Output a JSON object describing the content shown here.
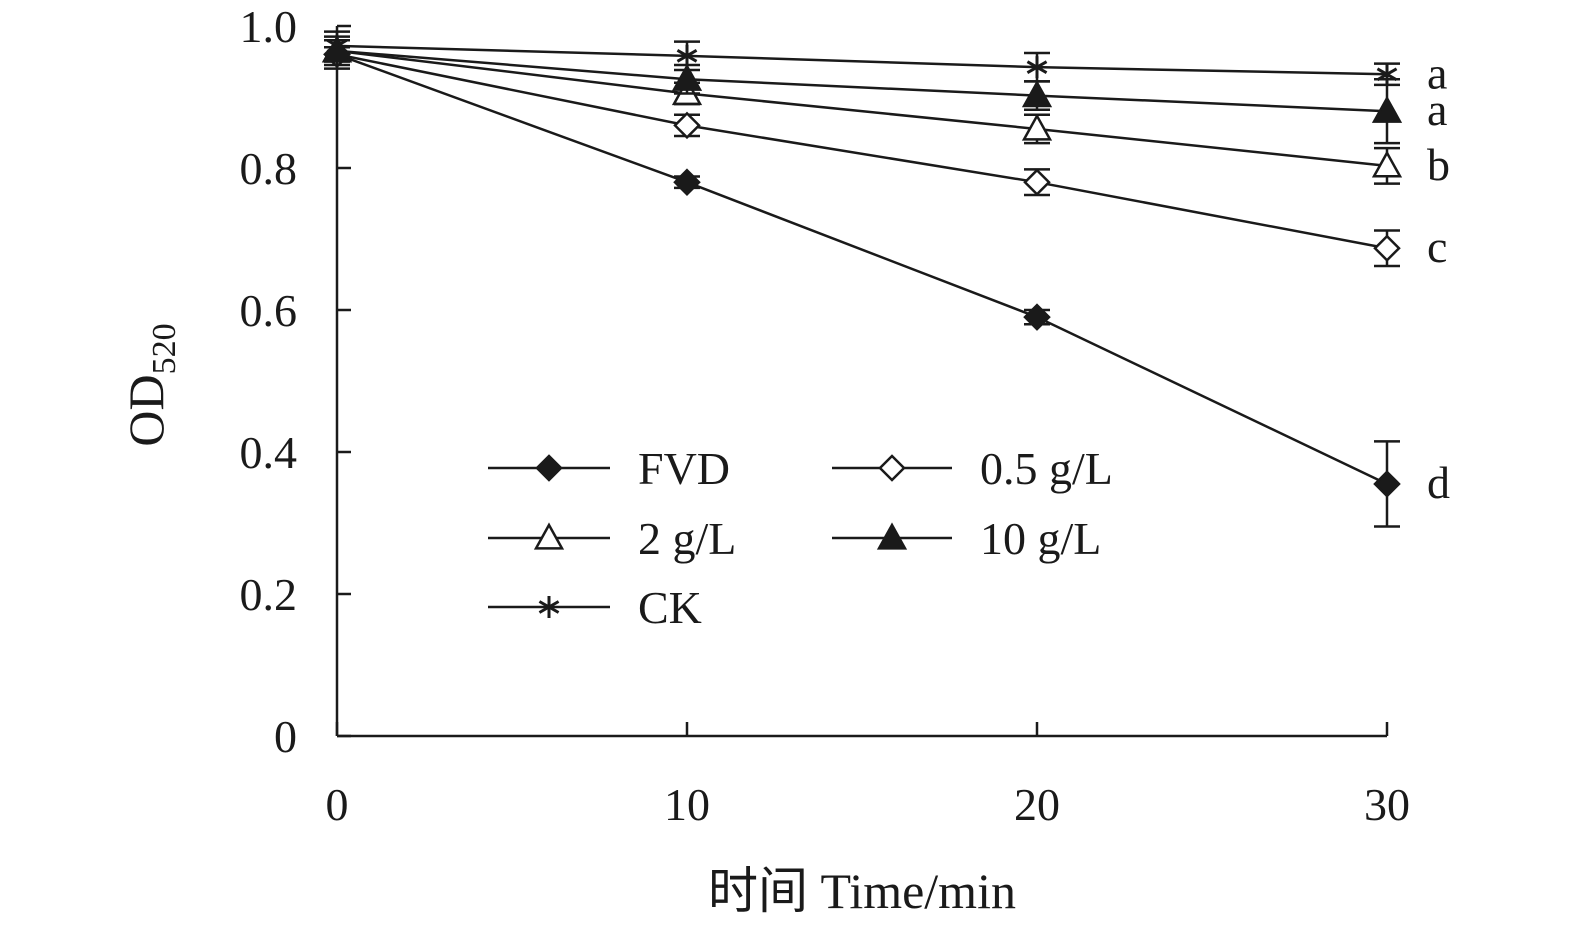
{
  "chart_data": {
    "type": "line",
    "x": [
      0,
      10,
      20,
      30
    ],
    "xlim": [
      0,
      30
    ],
    "ylim": [
      0,
      1.0
    ],
    "xticks": [
      "0",
      "10",
      "20",
      "30"
    ],
    "yticks": [
      "0",
      "0.2",
      "0.4",
      "0.6",
      "0.8",
      "1.0"
    ],
    "xlabel": "时间 Time/min",
    "ylabel_main": "OD",
    "ylabel_sub": "520",
    "grid": false,
    "legend_position": "center",
    "series": [
      {
        "name": "FVD",
        "marker": "diamond-filled",
        "values": [
          0.96,
          0.78,
          0.59,
          0.355
        ],
        "errors": [
          0.01,
          0.008,
          0.01,
          0.06
        ],
        "sig": "d"
      },
      {
        "name": "0.5 g/L",
        "marker": "diamond-open",
        "values": [
          0.96,
          0.86,
          0.78,
          0.687
        ],
        "errors": [
          0.02,
          0.015,
          0.018,
          0.025
        ],
        "sig": "c"
      },
      {
        "name": "2 g/L",
        "marker": "triangle-open",
        "values": [
          0.965,
          0.905,
          0.855,
          0.803
        ],
        "errors": [
          0.02,
          0.015,
          0.02,
          0.025
        ],
        "sig": "b"
      },
      {
        "name": "10 g/L",
        "marker": "triangle-filled",
        "values": [
          0.965,
          0.925,
          0.902,
          0.88
        ],
        "errors": [
          0.015,
          0.02,
          0.02,
          0.045
        ],
        "sig": "a"
      },
      {
        "name": "CK",
        "marker": "star",
        "values": [
          0.972,
          0.958,
          0.942,
          0.932
        ],
        "errors": [
          0.02,
          0.02,
          0.02,
          0.015
        ],
        "sig": "a"
      }
    ],
    "legend_order": [
      0,
      1,
      2,
      3,
      4
    ]
  }
}
